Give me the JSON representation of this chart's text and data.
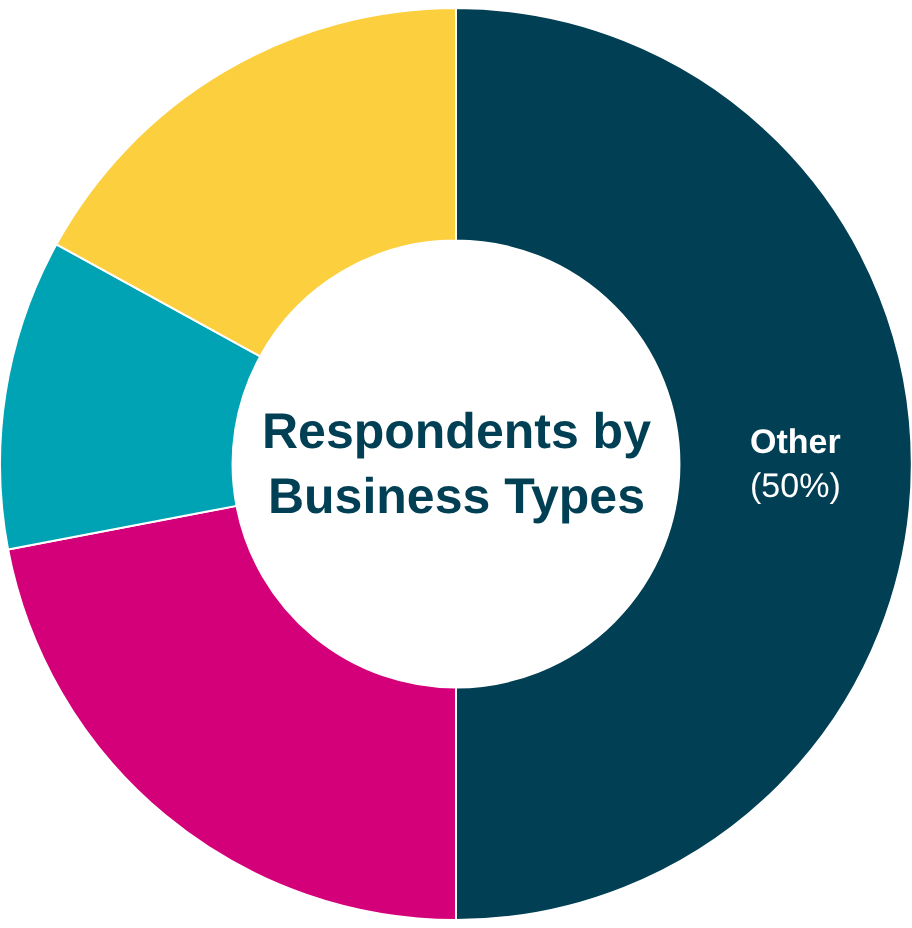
{
  "chart_data": {
    "type": "donut",
    "title": "Respondents by Business Types",
    "categories": [
      "Other",
      null,
      null,
      null
    ],
    "values": [
      50,
      22,
      11,
      17
    ],
    "value_labels": [
      "(50%)",
      null,
      null,
      null
    ],
    "colors": [
      "#003f54",
      "#d4007a",
      "#00a3b4",
      "#fccf3e"
    ],
    "legend": false
  }
}
